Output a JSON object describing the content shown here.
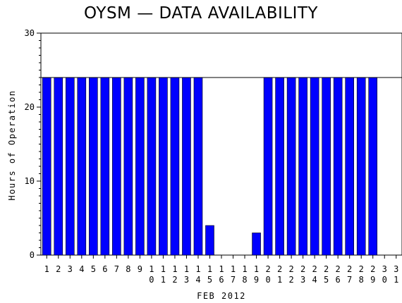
{
  "chart_data": {
    "type": "bar",
    "title": "OYSM — DATA AVAILABILITY",
    "xlabel": "FEB 2012",
    "ylabel": "Hours of Operation",
    "ylim": [
      0,
      30
    ],
    "yticks": [
      0,
      10,
      20,
      30
    ],
    "reference_line": 24,
    "bar_color": "#0000ff",
    "grid": false,
    "categories": [
      "1",
      "2",
      "3",
      "4",
      "5",
      "6",
      "7",
      "8",
      "9",
      "10",
      "11",
      "12",
      "13",
      "14",
      "15",
      "16",
      "17",
      "18",
      "19",
      "20",
      "21",
      "22",
      "23",
      "24",
      "25",
      "26",
      "27",
      "28",
      "29",
      "30",
      "31"
    ],
    "values": [
      24,
      24,
      24,
      24,
      24,
      24,
      24,
      24,
      24,
      24,
      24,
      24,
      24,
      24,
      4,
      0,
      0,
      0,
      3,
      24,
      24,
      24,
      24,
      24,
      24,
      24,
      24,
      24,
      24,
      0,
      0
    ]
  }
}
